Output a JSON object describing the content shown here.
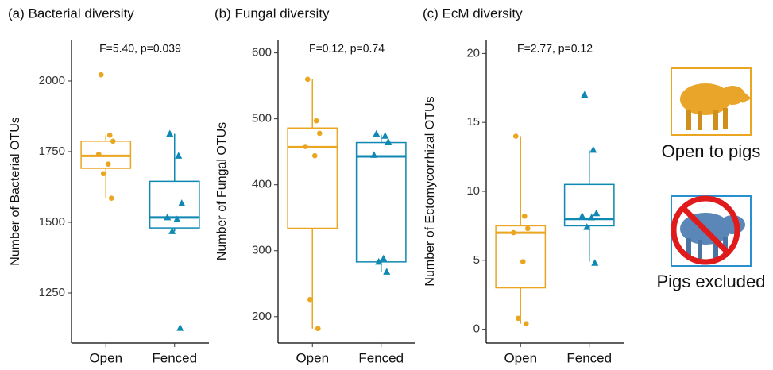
{
  "chart_data": [
    {
      "type": "box",
      "title": "(a) Bacterial diversity",
      "annotation": "F=5.40, p=0.039",
      "y_label": "Number of Bacterial OTUs",
      "categories": [
        "Open",
        "Fenced"
      ],
      "series": [
        {
          "color": "#eaa521",
          "marker": "circle",
          "whisker_low": 1585,
          "q1": 1691,
          "median": 1735,
          "q3": 1787,
          "whisker_high": 1808,
          "points": [
            2022,
            1808,
            1787,
            1741,
            1706,
            1672,
            1585
          ]
        },
        {
          "color": "#0f88b3",
          "marker": "triangle",
          "whisker_low": 1468,
          "q1": 1480,
          "median": 1517,
          "q3": 1645,
          "whisker_high": 1813,
          "points": [
            1813,
            1735,
            1567,
            1517,
            1510,
            1468,
            1126
          ]
        }
      ],
      "ylim": [
        1073,
        2146
      ],
      "yticks": [
        1250,
        1500,
        1750,
        2000
      ]
    },
    {
      "type": "box",
      "title": "(b) Fungal diversity",
      "annotation": "F=0.12, p=0.74",
      "y_label": "Number of Fungal OTUs",
      "categories": [
        "Open",
        "Fenced"
      ],
      "series": [
        {
          "color": "#eaa521",
          "marker": "circle",
          "whisker_low": 182,
          "q1": 334,
          "median": 457,
          "q3": 486,
          "whisker_high": 560,
          "points": [
            560,
            497,
            478,
            458,
            444,
            226,
            182
          ]
        },
        {
          "color": "#0f88b3",
          "marker": "triangle",
          "whisker_low": 268,
          "q1": 283,
          "median": 443,
          "q3": 464,
          "whisker_high": 476,
          "points": [
            477,
            474,
            465,
            445,
            288,
            283,
            268
          ]
        }
      ],
      "ylim": [
        160,
        620
      ],
      "yticks": [
        200,
        300,
        400,
        500,
        600
      ]
    },
    {
      "type": "box",
      "title": "(c) EcM diversity",
      "annotation": "F=2.77, p=0.12",
      "y_label": "Number of Ectomycorrhizal OTUs",
      "categories": [
        "Open",
        "Fenced"
      ],
      "series": [
        {
          "color": "#eaa521",
          "marker": "circle",
          "whisker_low": 0.4,
          "q1": 3.0,
          "median": 7.0,
          "q3": 7.5,
          "whisker_high": 14.0,
          "points": [
            14.0,
            8.2,
            7.3,
            7.0,
            4.9,
            0.8,
            0.4
          ]
        },
        {
          "color": "#0f88b3",
          "marker": "triangle",
          "whisker_low": 4.9,
          "q1": 7.5,
          "median": 8.0,
          "q3": 10.5,
          "whisker_high": 13.0,
          "points": [
            17.0,
            13.0,
            8.4,
            8.2,
            8.1,
            7.4,
            4.8
          ]
        }
      ],
      "ylim": [
        -1,
        21
      ],
      "yticks": [
        0,
        5,
        10,
        15,
        20
      ]
    }
  ],
  "side_labels": [
    "Open to pigs",
    "Pigs excluded"
  ]
}
